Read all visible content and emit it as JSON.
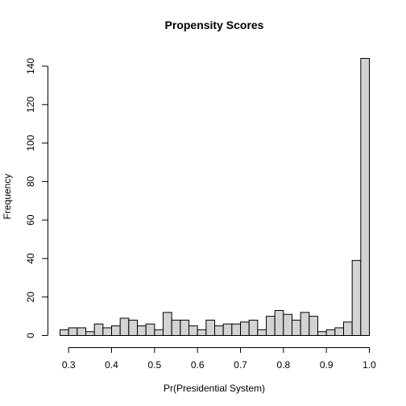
{
  "chart_data": {
    "type": "bar",
    "title": "Propensity Scores",
    "xlabel": "Pr(Presidential System)",
    "ylabel": "Frequency",
    "bin_start": 0.28,
    "bin_width": 0.02,
    "values": [
      3,
      4,
      4,
      2,
      6,
      4,
      5,
      9,
      8,
      5,
      6,
      3,
      12,
      8,
      8,
      5,
      3,
      8,
      5,
      6,
      6,
      7,
      8,
      3,
      10,
      13,
      11,
      8,
      12,
      10,
      2,
      3,
      4,
      7,
      39,
      144
    ],
    "xlim": [
      0.28,
      1.0
    ],
    "ylim": [
      0,
      144
    ],
    "x_ticks": [
      "0.3",
      "0.4",
      "0.5",
      "0.6",
      "0.7",
      "0.8",
      "0.9",
      "1.0"
    ],
    "y_ticks": [
      "0",
      "20",
      "40",
      "60",
      "80",
      "100",
      "120",
      "140"
    ],
    "grid": false,
    "bar_color": "#d3d3d3"
  }
}
